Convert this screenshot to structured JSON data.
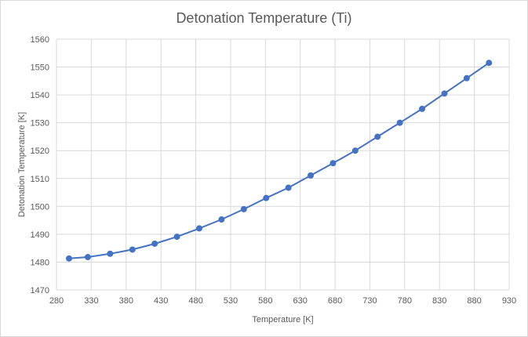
{
  "chart_data": {
    "type": "line",
    "title": "Detonation Temperature (Ti)",
    "xlabel": "Temperature  [K]",
    "ylabel": "Detonation Temperature  [K]",
    "xlim": [
      280,
      930
    ],
    "ylim": [
      1470,
      1560
    ],
    "x_ticks": [
      280,
      330,
      380,
      430,
      480,
      530,
      580,
      630,
      680,
      730,
      780,
      830,
      880,
      930
    ],
    "y_ticks": [
      1470,
      1480,
      1490,
      1500,
      1510,
      1520,
      1530,
      1540,
      1550,
      1560
    ],
    "grid": true,
    "legend": "none",
    "series": [
      {
        "color": "#4472c4",
        "x": [
          298,
          325,
          357,
          389,
          421,
          453,
          485,
          517,
          549,
          581,
          613,
          645,
          677,
          709,
          741,
          773,
          805,
          837,
          869,
          901
        ],
        "y": [
          1481.3,
          1481.8,
          1483.0,
          1484.5,
          1486.6,
          1489.1,
          1492.1,
          1495.3,
          1499.0,
          1503.0,
          1506.7,
          1511.1,
          1515.5,
          1520.0,
          1525.0,
          1530.0,
          1535.0,
          1540.5,
          1546.0,
          1551.5
        ]
      }
    ]
  }
}
